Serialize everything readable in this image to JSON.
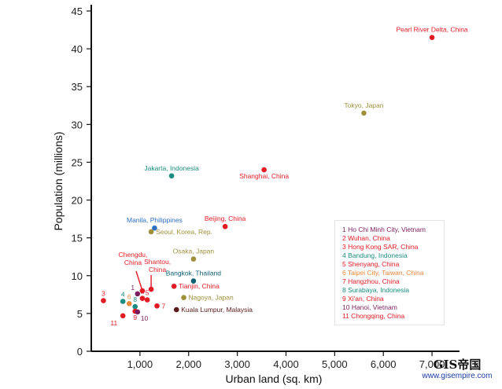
{
  "chart_data": {
    "type": "scatter",
    "xlabel": "Urban land (sq. km)",
    "ylabel": "Population (millions)",
    "xlim": [
      0,
      7500
    ],
    "ylim": [
      0,
      45
    ],
    "xticks": [
      1000,
      2000,
      3000,
      4000,
      5000,
      6000,
      7000
    ],
    "xtick_labels": [
      "1,000",
      "2,000",
      "3,000",
      "4,000",
      "5,000",
      "6,000",
      "7,000"
    ],
    "yticks": [
      0,
      5,
      10,
      15,
      20,
      25,
      30,
      35,
      40,
      45
    ],
    "ytick_labels": [
      "0",
      "5",
      "10",
      "15",
      "20",
      "25",
      "30",
      "35",
      "40",
      "45"
    ],
    "grid": false,
    "legend_placement": "bottom-right",
    "legend": [
      {
        "label": "1 Ho Chi Minh City, Vietnam",
        "color": "#7a1d5c"
      },
      {
        "label": "2 Wuhan, China",
        "color": "#e31b23"
      },
      {
        "label": "3 Hong Kong SAR, China",
        "color": "#e31b23"
      },
      {
        "label": "4 Bandung, Indonesia",
        "color": "#1a8c82"
      },
      {
        "label": "5 Shenyang, China",
        "color": "#e31b23"
      },
      {
        "label": "6 Taipei City, Taiwan, China",
        "color": "#e8863a"
      },
      {
        "label": "7 Hangzhou, China",
        "color": "#e31b23"
      },
      {
        "label": "8 Surabaya, Indonesia",
        "color": "#1a8c82"
      },
      {
        "label": "9 Xi'an, China",
        "color": "#e31b23"
      },
      {
        "label": "10 Hanoi, Vietnam",
        "color": "#7a1d5c"
      },
      {
        "label": "11 Chongqing, China",
        "color": "#e31b23"
      }
    ],
    "points": [
      {
        "x": 7000,
        "y": 41.5,
        "label": "Pearl River Delta, China",
        "color": "#e31b23",
        "label_pos": "above"
      },
      {
        "x": 5600,
        "y": 31.5,
        "label": "Tokyo, Japan",
        "color": "#9e8f3a",
        "label_pos": "above"
      },
      {
        "x": 3550,
        "y": 24.0,
        "label": "Shanghai, China",
        "color": "#e31b23",
        "label_pos": "below"
      },
      {
        "x": 1650,
        "y": 23.2,
        "label": "Jakarta, Indonesia",
        "color": "#1a8c82",
        "label_pos": "above"
      },
      {
        "x": 2750,
        "y": 16.5,
        "label": "Beijing, China",
        "color": "#e31b23",
        "label_pos": "above"
      },
      {
        "x": 1300,
        "y": 16.3,
        "label": "Manila, Philippines",
        "color": "#2f6fbf",
        "label_pos": "above"
      },
      {
        "x": 1230,
        "y": 15.8,
        "label": "Seoul, Korea, Rep.",
        "color": "#9e8f3a",
        "label_pos": "right"
      },
      {
        "x": 2100,
        "y": 12.2,
        "label": "Osaka, Japan",
        "color": "#9e8f3a",
        "label_pos": "above"
      },
      {
        "x": 2100,
        "y": 9.3,
        "label": "Bangkok, Thailand",
        "color": "#0e5e73",
        "label_pos": "above"
      },
      {
        "x": 1700,
        "y": 8.6,
        "label": "Tianjin, China",
        "color": "#e31b23",
        "label_pos": "right"
      },
      {
        "x": 1900,
        "y": 7.1,
        "label": "Nagoya, Japan",
        "color": "#9e8f3a",
        "label_pos": "right"
      },
      {
        "x": 1750,
        "y": 5.5,
        "label": "Kuala Lumpur, Malaysia",
        "color": "#5a1a1a",
        "label_pos": "right"
      },
      {
        "x": 1050,
        "y": 8.0,
        "label": "Chengdu, China",
        "color": "#e31b23",
        "label_pos": "callout-left"
      },
      {
        "x": 1230,
        "y": 8.2,
        "label": "Shantou, China",
        "color": "#e31b23",
        "label_pos": "callout-right"
      },
      {
        "x": 950,
        "y": 7.6,
        "label": "1",
        "color": "#7a1d5c",
        "label_pos": "num-upleft"
      },
      {
        "x": 1050,
        "y": 7.0,
        "label": "2",
        "color": "#e31b23",
        "label_pos": "num-up"
      },
      {
        "x": 250,
        "y": 6.7,
        "label": "3",
        "color": "#e31b23",
        "label_pos": "num-up"
      },
      {
        "x": 650,
        "y": 6.6,
        "label": "4",
        "color": "#1a8c82",
        "label_pos": "num-up"
      },
      {
        "x": 1150,
        "y": 6.8,
        "label": "5",
        "color": "#e31b23",
        "label_pos": "num-up"
      },
      {
        "x": 780,
        "y": 6.3,
        "label": "6",
        "color": "#e8863a",
        "label_pos": "num-up"
      },
      {
        "x": 1350,
        "y": 6.0,
        "label": "7",
        "color": "#e31b23",
        "label_pos": "num-right"
      },
      {
        "x": 900,
        "y": 5.9,
        "label": "8",
        "color": "#1a8c82",
        "label_pos": "num-up"
      },
      {
        "x": 900,
        "y": 5.3,
        "label": "9",
        "color": "#e31b23",
        "label_pos": "num-down"
      },
      {
        "x": 950,
        "y": 5.2,
        "label": "10",
        "color": "#7a1d5c",
        "label_pos": "num-downright"
      },
      {
        "x": 650,
        "y": 4.7,
        "label": "11",
        "color": "#e31b23",
        "label_pos": "num-downleft"
      }
    ]
  },
  "watermark": {
    "logo": "GIS帝国",
    "url": "www.gisempire.com"
  }
}
